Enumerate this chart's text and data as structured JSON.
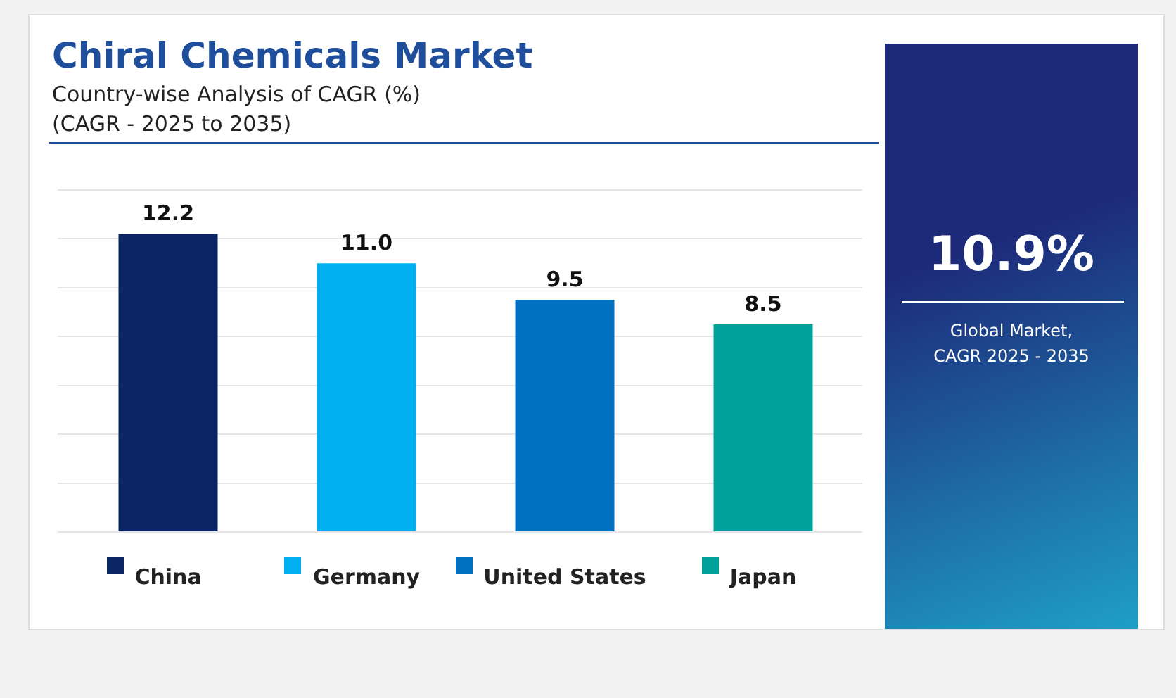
{
  "chart_data": {
    "type": "bar",
    "title": "Chiral Chemicals Market",
    "subtitle": "Country-wise Analysis of CAGR (%)\n(CAGR - 2025 to 2035)",
    "categories": [
      "China",
      "Germany",
      "United States",
      "Japan"
    ],
    "values": [
      12.2,
      11.0,
      9.5,
      8.5
    ],
    "value_labels": [
      "12.2",
      "11.0",
      "9.5",
      "8.5"
    ],
    "colors": [
      "#0b2463",
      "#00b0f0",
      "#0070c0",
      "#00a19b"
    ],
    "grid": "y",
    "tick_labels": "x",
    "annotations": [
      "10.9%",
      "Global Market,\nCAGR 2025 - 2035"
    ]
  }
}
